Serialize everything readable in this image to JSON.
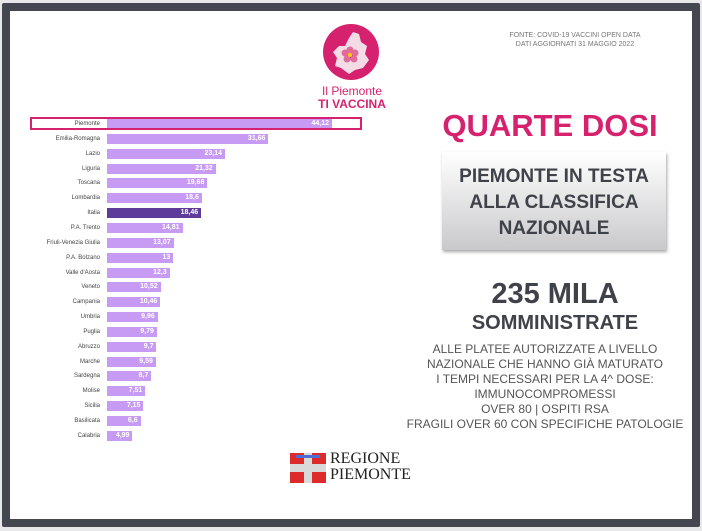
{
  "logo": {
    "line1": "Il Piemonte",
    "line2": "TI VACCINA",
    "color": "#d6226e"
  },
  "source": {
    "line1": "FONTE: COVID-19 VACCINI OPEN DATA",
    "line2": "DATI AGGIORNATI 31 MAGGIO 2022"
  },
  "headline": "QUARTE DOSI",
  "gray_box": {
    "text": "PIEMONTE IN TESTA\nALLA CLASSIFICA\nNAZIONALE"
  },
  "stat": {
    "number": "235 MILA",
    "label": "SOMMINISTRATE"
  },
  "description": "ALLE PLATEE AUTORIZZATE A LIVELLO\nNAZIONALE CHE HANNO GIÀ MATURATO\nI TEMPI NECESSARI PER LA 4^ DOSE:\nIMMUNOCOMPROMESSI\nOVER 80 | OSPITI RSA\nFRAGILI OVER 60 CON SPECIFICHE PATOLOGIE",
  "region_logo": {
    "text": "REGIONE\nPIEMONTE"
  },
  "colors": {
    "accent": "#d6226e",
    "bar": "#c79bf3",
    "bar_national": "#5e3c9a",
    "text_dark": "#3f4248"
  },
  "chart_data": {
    "type": "bar",
    "orientation": "horizontal",
    "title": "",
    "xlabel": "",
    "ylabel": "",
    "highlight": "Piemonte",
    "national_average": "Italia",
    "categories": [
      "Piemonte",
      "Emilia-Romagna",
      "Lazio",
      "Liguria",
      "Toscana",
      "Lombardia",
      "Italia",
      "P.A. Trento",
      "Friuli-Venezia Giulia",
      "P.A. Bolzano",
      "Valle d'Aosta",
      "Veneto",
      "Campania",
      "Umbria",
      "Puglia",
      "Abruzzo",
      "Marche",
      "Sardegna",
      "Molise",
      "Sicilia",
      "Basilicata",
      "Calabria"
    ],
    "values": [
      44.12,
      31.66,
      23.14,
      21.32,
      19.68,
      18.6,
      18.46,
      14.81,
      13.07,
      13,
      12.3,
      10.52,
      10.46,
      9.96,
      9.79,
      9.7,
      9.59,
      8.7,
      7.51,
      7.15,
      6.6,
      4.99
    ],
    "value_labels": [
      "44,12",
      "31,66",
      "23,14",
      "21,32",
      "19,68",
      "18,6",
      "18,46",
      "14,81",
      "13,07",
      "13",
      "12,3",
      "10,52",
      "10,46",
      "9,96",
      "9,79",
      "9,7",
      "9,59",
      "8,7",
      "7,51",
      "7,15",
      "6,6",
      "4,99"
    ],
    "grid": false,
    "legend": "none"
  }
}
